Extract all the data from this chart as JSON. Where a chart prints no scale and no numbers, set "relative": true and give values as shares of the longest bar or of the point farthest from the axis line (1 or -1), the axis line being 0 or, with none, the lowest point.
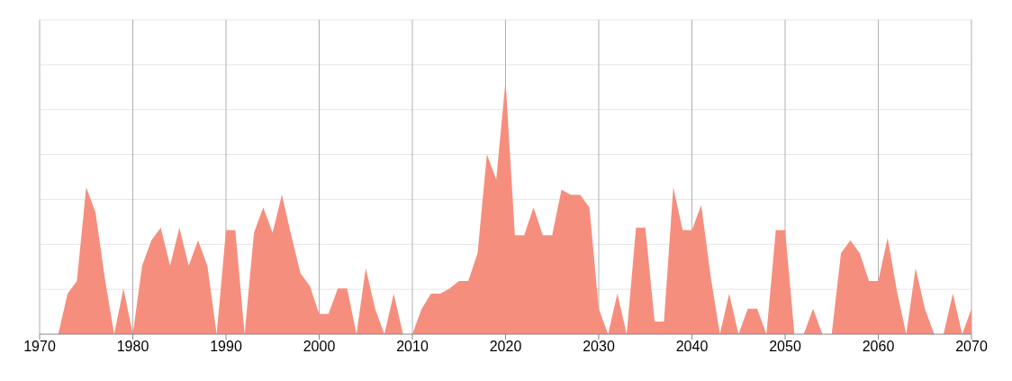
{
  "chart_data": {
    "type": "area",
    "relative": true,
    "color": "#f68e7e",
    "grid": true,
    "x": [
      1970,
      1971,
      1972,
      1973,
      1974,
      1975,
      1976,
      1977,
      1978,
      1979,
      1980,
      1981,
      1982,
      1983,
      1984,
      1985,
      1986,
      1987,
      1988,
      1989,
      1990,
      1991,
      1992,
      1993,
      1994,
      1995,
      1996,
      1997,
      1998,
      1999,
      2000,
      2001,
      2002,
      2003,
      2004,
      2005,
      2006,
      2007,
      2008,
      2009,
      2010,
      2011,
      2012,
      2013,
      2014,
      2015,
      2016,
      2017,
      2018,
      2019,
      2020,
      2021,
      2022,
      2023,
      2024,
      2025,
      2026,
      2027,
      2028,
      2029,
      2030,
      2031,
      2032,
      2033,
      2034,
      2035,
      2036,
      2037,
      2038,
      2039,
      2040,
      2041,
      2042,
      2043,
      2044,
      2045,
      2046,
      2047,
      2048,
      2049,
      2050,
      2051,
      2052,
      2053,
      2054,
      2055,
      2056,
      2057,
      2058,
      2059,
      2060,
      2061,
      2062,
      2063,
      2064,
      2065,
      2066,
      2067,
      2068,
      2069,
      2070
    ],
    "values": [
      0,
      0,
      0,
      0.16,
      0.21,
      0.58,
      0.48,
      0.22,
      0,
      0.18,
      0,
      0.27,
      0.37,
      0.42,
      0.27,
      0.42,
      0.27,
      0.37,
      0.27,
      0,
      0.41,
      0.41,
      0,
      0.4,
      0.5,
      0.4,
      0.55,
      0.39,
      0.24,
      0.19,
      0.08,
      0.08,
      0.18,
      0.18,
      0,
      0.26,
      0.1,
      0,
      0.16,
      0,
      0,
      0.1,
      0.16,
      0.16,
      0.18,
      0.21,
      0.21,
      0.32,
      0.71,
      0.61,
      1,
      0.39,
      0.39,
      0.5,
      0.39,
      0.39,
      0.57,
      0.55,
      0.55,
      0.5,
      0.1,
      0,
      0.16,
      0,
      0.42,
      0.42,
      0.05,
      0.05,
      0.58,
      0.41,
      0.41,
      0.51,
      0.23,
      0,
      0.16,
      0,
      0.1,
      0.1,
      0,
      0.41,
      0.41,
      0,
      0,
      0.1,
      0,
      0,
      0.32,
      0.37,
      0.32,
      0.21,
      0.21,
      0.38,
      0.17,
      0,
      0.26,
      0.1,
      0,
      0,
      0.16,
      0,
      0.1
    ],
    "xlim": [
      1970,
      2070
    ],
    "xticks": [
      1970,
      1980,
      1990,
      2000,
      2010,
      2020,
      2030,
      2040,
      2050,
      2060,
      2070
    ]
  }
}
